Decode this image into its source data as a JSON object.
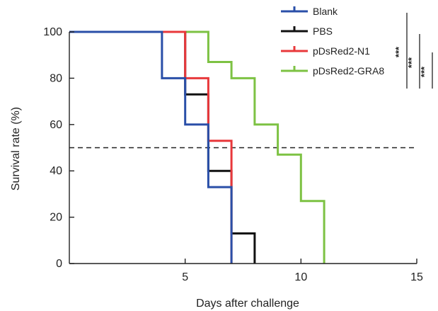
{
  "chart_data": {
    "type": "line",
    "step": true,
    "xlabel": "Days after challenge",
    "ylabel": "Survival rate (%)",
    "xlim": [
      0,
      15
    ],
    "ylim": [
      0,
      100
    ],
    "xticks": [
      5,
      10,
      15
    ],
    "yticks": [
      0,
      20,
      40,
      60,
      80,
      100
    ],
    "reference_line": {
      "y": 50,
      "style": "dashed",
      "color": "#222222"
    },
    "legend_position": "top-right",
    "series": [
      {
        "name": "Blank",
        "color": "#2a4fa8",
        "points": [
          [
            0,
            100
          ],
          [
            4,
            100
          ],
          [
            4,
            80
          ],
          [
            5,
            80
          ],
          [
            5,
            60
          ],
          [
            6,
            60
          ],
          [
            6,
            33
          ],
          [
            7,
            33
          ],
          [
            7,
            0
          ]
        ]
      },
      {
        "name": "PBS",
        "color": "#111111",
        "points": [
          [
            0,
            100
          ],
          [
            5,
            100
          ],
          [
            5,
            73
          ],
          [
            6,
            73
          ],
          [
            6,
            40
          ],
          [
            7,
            40
          ],
          [
            7,
            13
          ],
          [
            8,
            13
          ],
          [
            8,
            0
          ]
        ]
      },
      {
        "name": "pDsRed2-N1",
        "color": "#e8383b",
        "points": [
          [
            0,
            100
          ],
          [
            5,
            100
          ],
          [
            5,
            80
          ],
          [
            6,
            80
          ],
          [
            6,
            53
          ],
          [
            7,
            53
          ],
          [
            7,
            0
          ]
        ]
      },
      {
        "name": "pDsRed2-GRA8",
        "color": "#7dc243",
        "points": [
          [
            0,
            100
          ],
          [
            6,
            100
          ],
          [
            6,
            87
          ],
          [
            7,
            87
          ],
          [
            7,
            80
          ],
          [
            8,
            80
          ],
          [
            8,
            60
          ],
          [
            9,
            60
          ],
          [
            9,
            47
          ],
          [
            10,
            47
          ],
          [
            10,
            27
          ],
          [
            11,
            27
          ],
          [
            11,
            0
          ]
        ]
      }
    ],
    "significance": [
      {
        "label": "***",
        "from": "pDsRed2-GRA8",
        "to": "Blank"
      },
      {
        "label": "***",
        "from": "pDsRed2-GRA8",
        "to": "PBS"
      },
      {
        "label": "***",
        "from": "pDsRed2-GRA8",
        "to": "pDsRed2-N1"
      }
    ]
  }
}
